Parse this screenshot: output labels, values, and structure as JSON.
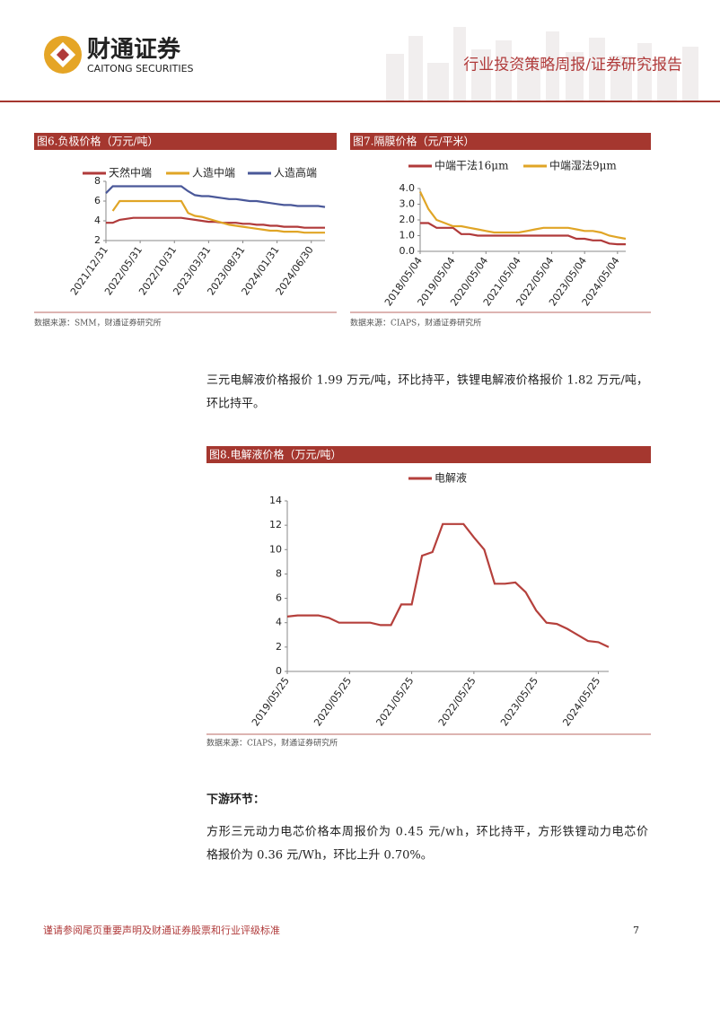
{
  "header": {
    "logo_cn": "财通证券",
    "logo_en": "CAITONG SECURITIES",
    "report_type": "行业投资策略周报/证券研究报告"
  },
  "chart_data": [
    {
      "type": "line",
      "title": "图6.负极价格（万元/吨）",
      "source": "数据来源：SMM，财通证券研究所",
      "categories": [
        "2021/12/31",
        null,
        null,
        null,
        null,
        "2022/05/31",
        null,
        null,
        null,
        null,
        "2022/10/31",
        null,
        null,
        null,
        null,
        "2023/03/31",
        null,
        null,
        null,
        null,
        "2023/08/31",
        null,
        null,
        null,
        null,
        "2024/01/31",
        null,
        null,
        null,
        null,
        "2024/06/30",
        null,
        null
      ],
      "series": [
        {
          "name": "天然中端",
          "color": "#b03a3a",
          "values": [
            3.8,
            3.8,
            4.1,
            4.2,
            4.3,
            4.3,
            4.3,
            4.3,
            4.3,
            4.3,
            4.3,
            4.3,
            4.2,
            4.1,
            4.0,
            3.9,
            3.9,
            3.8,
            3.8,
            3.8,
            3.7,
            3.7,
            3.6,
            3.6,
            3.5,
            3.5,
            3.4,
            3.4,
            3.4,
            3.3,
            3.3,
            3.3,
            3.3
          ]
        },
        {
          "name": "人造中端",
          "color": "#e0a526",
          "values": [
            null,
            5.0,
            6.0,
            6.0,
            6.0,
            6.0,
            6.0,
            6.0,
            6.0,
            6.0,
            6.0,
            6.0,
            4.8,
            4.5,
            4.4,
            4.2,
            4.0,
            3.8,
            3.6,
            3.5,
            3.4,
            3.3,
            3.2,
            3.1,
            3.0,
            3.0,
            2.9,
            2.9,
            2.9,
            2.8,
            2.8,
            2.8,
            2.8
          ]
        },
        {
          "name": "人造高端",
          "color": "#4a5899",
          "values": [
            6.8,
            7.5,
            7.5,
            7.5,
            7.5,
            7.5,
            7.5,
            7.5,
            7.5,
            7.5,
            7.5,
            7.5,
            7.0,
            6.6,
            6.5,
            6.5,
            6.4,
            6.3,
            6.2,
            6.2,
            6.1,
            6.0,
            6.0,
            5.9,
            5.8,
            5.7,
            5.6,
            5.6,
            5.5,
            5.5,
            5.5,
            5.5,
            5.4
          ]
        }
      ],
      "ylim": [
        2,
        8
      ],
      "yticks": [
        2,
        4,
        6,
        8
      ]
    },
    {
      "type": "line",
      "title": "图7.隔膜价格（元/平米）",
      "source": "数据来源：CIAPS，财通证券研究所",
      "categories": [
        "2018/05/04",
        null,
        null,
        null,
        "2019/05/04",
        null,
        null,
        null,
        "2020/05/04",
        null,
        null,
        null,
        "2021/05/04",
        null,
        null,
        null,
        "2022/05/04",
        null,
        null,
        null,
        "2023/05/04",
        null,
        null,
        null,
        "2024/05/04",
        null
      ],
      "series": [
        {
          "name": "中端干法16μm",
          "color": "#b03a3a",
          "values": [
            1.8,
            1.8,
            1.5,
            1.5,
            1.5,
            1.1,
            1.1,
            1.0,
            1.0,
            1.0,
            1.0,
            1.0,
            1.0,
            1.0,
            1.0,
            1.0,
            1.0,
            1.0,
            1.0,
            0.8,
            0.8,
            0.7,
            0.7,
            0.5,
            0.45,
            0.45
          ]
        },
        {
          "name": "中端湿法9μm",
          "color": "#e0a526",
          "values": [
            3.8,
            2.7,
            2.0,
            1.8,
            1.6,
            1.6,
            1.5,
            1.4,
            1.3,
            1.2,
            1.2,
            1.2,
            1.2,
            1.3,
            1.4,
            1.5,
            1.5,
            1.5,
            1.5,
            1.4,
            1.3,
            1.3,
            1.2,
            1.0,
            0.9,
            0.8
          ]
        }
      ],
      "ylim": [
        0,
        4
      ],
      "yticks": [
        {
          "value": 0,
          "label": "0.0"
        },
        {
          "value": 1,
          "label": "1.0"
        },
        {
          "value": 2,
          "label": "2.0"
        },
        {
          "value": 3,
          "label": "3.0"
        },
        {
          "value": 4,
          "label": "4.0"
        }
      ]
    },
    {
      "type": "line",
      "title": "图8.电解液价格（万元/吨）",
      "source": "数据来源：CIAPS，财通证券研究所",
      "categories": [
        "2019/05/25",
        null,
        null,
        null,
        null,
        null,
        "2020/05/25",
        null,
        null,
        null,
        null,
        null,
        "2021/05/25",
        null,
        null,
        null,
        null,
        null,
        "2022/05/25",
        null,
        null,
        null,
        null,
        null,
        "2023/05/25",
        null,
        null,
        null,
        null,
        null,
        "2024/05/25",
        null
      ],
      "series": [
        {
          "name": "电解液",
          "color": "#b5403c",
          "values": [
            4.5,
            4.6,
            4.6,
            4.6,
            4.4,
            4.0,
            4.0,
            4.0,
            4.0,
            3.8,
            3.8,
            5.5,
            5.5,
            9.5,
            9.8,
            12.1,
            12.1,
            12.1,
            11.0,
            10.0,
            7.2,
            7.2,
            7.3,
            6.5,
            5.0,
            4.0,
            3.9,
            3.5,
            3.0,
            2.5,
            2.4,
            2.0
          ]
        }
      ],
      "ylim": [
        0,
        14
      ],
      "yticks": [
        0,
        2,
        4,
        6,
        8,
        10,
        12,
        14
      ]
    }
  ],
  "paragraphs": [
    {
      "lines": [
        "三元电解液价格报价 1.99 万元/吨，环比持平，铁锂电解液价格报价 1.82 万元/吨，",
        "环比持平。"
      ]
    },
    {
      "lines": [
        "下游环节："
      ]
    },
    {
      "lines": [
        "方形三元动力电芯价格本周报价为 0.45 元/wh，环比持平，方形铁锂动力电芯价",
        "格报价为 0.36 元/Wh，环比上升 0.70%。"
      ]
    }
  ],
  "footer": {
    "note": "谨请参阅尾页重要声明及财通证券股票和行业评级标准",
    "page": "7"
  }
}
